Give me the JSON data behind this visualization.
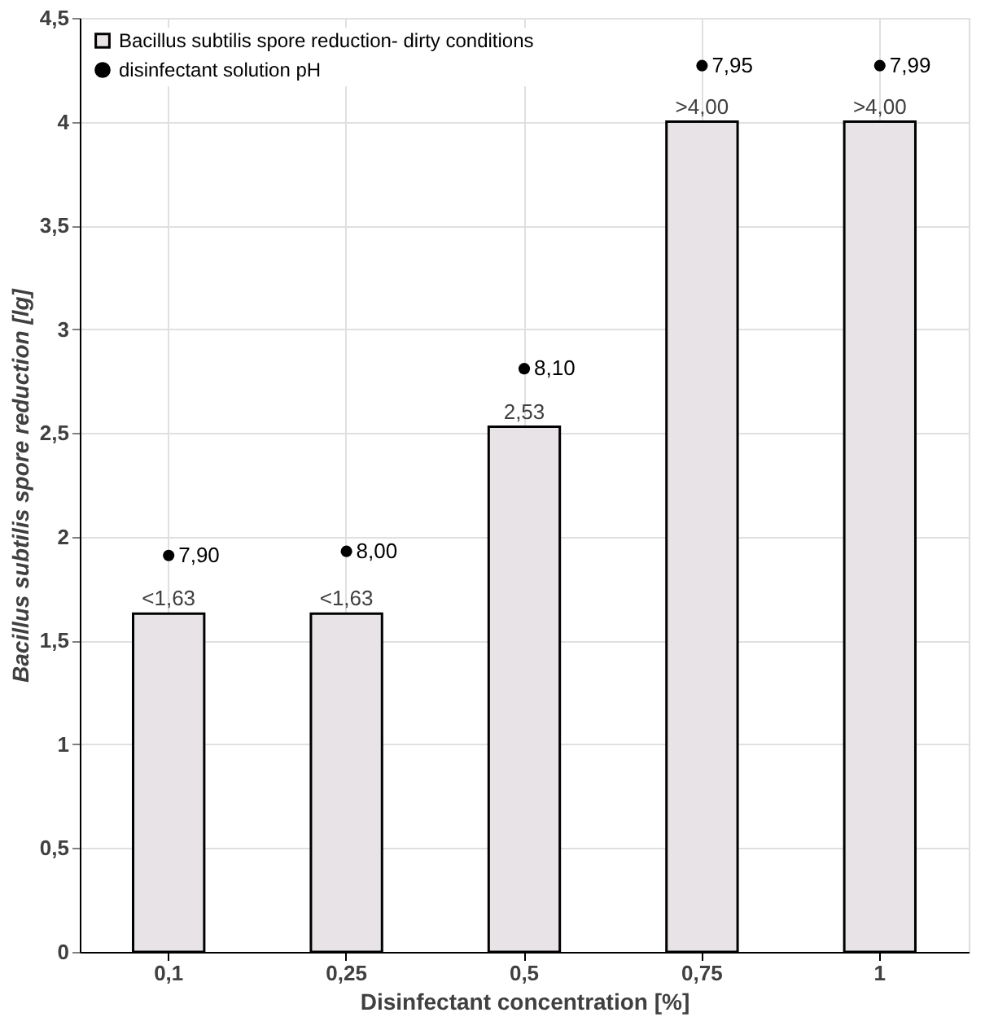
{
  "chart_data": {
    "type": "bar",
    "xlabel": "Disinfectant concentration [%]",
    "ylabel": "Bacillus subtilis spore reduction [lg]",
    "categories": [
      "0,1",
      "0,25",
      "0,5",
      "0,75",
      "1"
    ],
    "series": [
      {
        "name": "Bacillus subtilis spore reduction- dirty conditions",
        "type": "bar",
        "color": "#e7e3e6",
        "values": [
          1.63,
          1.63,
          2.53,
          4,
          4
        ],
        "value_labels": [
          "<1,63",
          "<1,63",
          "2,53",
          ">4,00",
          ">4,00"
        ]
      },
      {
        "name": "disinfectant solution pH",
        "type": "scatter",
        "color": "#000000",
        "marker": "circle",
        "x": [
          "0,1",
          "0,25",
          "0,5",
          "0,75",
          "1"
        ],
        "values": [
          1.91,
          1.93,
          2.81,
          4.27,
          4.27
        ]
      }
    ],
    "annotations": [
      {
        "text": "7,90",
        "x": "0,1",
        "y": 1.91
      },
      {
        "text": "8,00",
        "x": "0,25",
        "y": 1.93
      },
      {
        "text": "8,10",
        "x": "0,5",
        "y": 2.81
      },
      {
        "text": "7,95",
        "x": "0,75",
        "y": 4.27
      },
      {
        "text": "7,99",
        "x": "1",
        "y": 4.27
      }
    ],
    "ylim": [
      0,
      4.5
    ],
    "yticks": [
      {
        "value": 0,
        "label": "0"
      },
      {
        "value": 0.5,
        "label": "0,5"
      },
      {
        "value": 1,
        "label": "1"
      },
      {
        "value": 1.5,
        "label": "1,5"
      },
      {
        "value": 2,
        "label": "2"
      },
      {
        "value": 2.5,
        "label": "2,5"
      },
      {
        "value": 3,
        "label": "3"
      },
      {
        "value": 3.5,
        "label": "3,5"
      },
      {
        "value": 4,
        "label": "4"
      },
      {
        "value": 4.5,
        "label": "4,5"
      }
    ],
    "grid": true,
    "legend": "top left"
  }
}
